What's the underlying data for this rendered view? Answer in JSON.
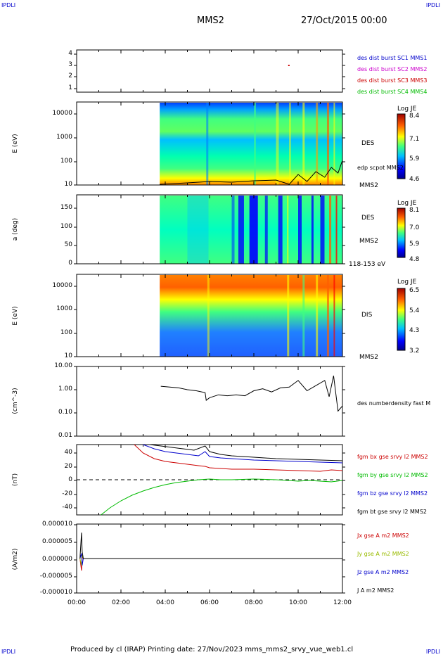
{
  "corners": {
    "tl": "IPDLI",
    "tr": "IPDLI",
    "bl": "IPDLI",
    "br": "IPDLI"
  },
  "header": {
    "spacecraft": "MMS2",
    "date": "27/Oct/2015 00:00"
  },
  "footer": {
    "text": "Produced by cl (IRAP)   Printing date: 27/Nov/2023   mms_mms2_srvy_vue_web1.cl"
  },
  "colors": {
    "mms1": "#0000cc",
    "mms2": "#cc00cc",
    "mms3": "#cc0000",
    "mms4": "#00bb00",
    "bx": "#cc0000",
    "by": "#00bb00",
    "bz": "#0000cc",
    "bt": "#000000"
  },
  "chart_data": [
    {
      "type": "scatter",
      "name_id": "burst-panel",
      "yticks": [
        "1",
        "2",
        "3",
        "4"
      ],
      "legend": [
        {
          "label": "des dist burst SC1 MMS1",
          "color": "#0000cc"
        },
        {
          "label": "des dist burst SC2 MMS2",
          "color": "#cc00cc"
        },
        {
          "label": "des dist burst SC3 MMS3",
          "color": "#cc0000"
        },
        {
          "label": "des dist burst SC4 MMS4",
          "color": "#00bb00"
        }
      ],
      "points": [
        {
          "t": 9.55,
          "sc": 3
        }
      ]
    },
    {
      "type": "heatmap",
      "name_id": "des-energy",
      "ylabel": "E (eV)",
      "yticks": [
        "10",
        "100",
        "1000",
        "10000"
      ],
      "instrument": "DES",
      "overlay_label": "edp scpot MMS2",
      "sc_label": "MMS2",
      "colorbar": {
        "title": "Log JE",
        "ticks": [
          "8.4",
          "7.1",
          "5.9",
          "4.6"
        ]
      },
      "data_start_hour": 3.75
    },
    {
      "type": "heatmap",
      "name_id": "des-pitch",
      "ylabel": "a (deg)",
      "yticks": [
        "0",
        "50",
        "100",
        "150"
      ],
      "instrument": "DES",
      "sc_label": "MMS2",
      "range_label": "118-153 eV",
      "colorbar": {
        "title": "Log JE",
        "ticks": [
          "8.1",
          "7.0",
          "5.9",
          "4.8"
        ]
      },
      "data_start_hour": 3.75
    },
    {
      "type": "heatmap",
      "name_id": "dis-energy",
      "ylabel": "E (eV)",
      "yticks": [
        "10",
        "100",
        "1000",
        "10000"
      ],
      "instrument": "DIS",
      "sc_label": "MMS2",
      "colorbar": {
        "title": "Log JE",
        "ticks": [
          "6.5",
          "5.4",
          "4.3",
          "3.2"
        ]
      },
      "data_start_hour": 3.75
    },
    {
      "type": "line",
      "name_id": "density",
      "ylabel": "(cm^-3)",
      "yticks": [
        "0.01",
        "0.10",
        "1.00",
        "10.00"
      ],
      "scale": "log",
      "ylim": [
        0.01,
        10
      ],
      "series": [
        {
          "name": "des numberdensity fast M",
          "color": "#000000",
          "x": [
            3.8,
            4.2,
            4.6,
            5.0,
            5.4,
            5.8,
            5.85,
            6.0,
            6.4,
            6.8,
            7.2,
            7.6,
            8.0,
            8.4,
            8.8,
            9.2,
            9.6,
            10.0,
            10.4,
            10.8,
            11.2,
            11.4,
            11.6,
            11.8,
            12.0
          ],
          "y": [
            1.4,
            1.3,
            1.2,
            1.0,
            0.9,
            0.75,
            0.35,
            0.45,
            0.6,
            0.55,
            0.6,
            0.55,
            0.9,
            1.1,
            0.8,
            1.2,
            1.3,
            2.5,
            0.9,
            1.5,
            2.5,
            0.5,
            4.0,
            0.12,
            0.2
          ]
        }
      ]
    },
    {
      "type": "line",
      "name_id": "fgm",
      "ylabel": "(nT)",
      "yticks": [
        "-40",
        "-20",
        "0",
        "20",
        "40"
      ],
      "ylim": [
        -50,
        50
      ],
      "series": [
        {
          "name": "fgm bx gse srvy l2 MMS2",
          "color": "#cc0000",
          "x": [
            2.6,
            3.0,
            3.5,
            4.0,
            4.5,
            5.0,
            5.5,
            5.8,
            6.0,
            6.5,
            7.0,
            8.0,
            9.0,
            10.0,
            11.0,
            11.5,
            12.0
          ],
          "y": [
            50,
            38,
            30,
            26,
            24,
            22,
            20,
            19,
            17,
            16,
            15,
            15,
            14,
            13,
            12,
            14,
            13
          ]
        },
        {
          "name": "fgm by gse srvy l2 MMS2",
          "color": "#00bb00",
          "x": [
            1.1,
            1.5,
            2.0,
            2.5,
            3.0,
            3.5,
            4.0,
            4.5,
            5.0,
            5.5,
            6.0,
            6.5,
            7.0,
            8.0,
            9.0,
            9.5,
            10.0,
            10.5,
            11.0,
            11.5,
            12.0
          ],
          "y": [
            -50,
            -40,
            -30,
            -22,
            -16,
            -11,
            -7,
            -4,
            -2,
            0,
            1,
            0,
            0,
            1,
            0,
            -1,
            -2,
            -1,
            -2,
            -3,
            -1
          ]
        },
        {
          "name": "fgm bz gse srvy l2 MMS2",
          "color": "#0000cc",
          "x": [
            3.0,
            3.5,
            4.0,
            4.5,
            5.0,
            5.5,
            5.8,
            6.0,
            6.5,
            7.0,
            8.0,
            9.0,
            10.0,
            11.0,
            12.0
          ],
          "y": [
            50,
            44,
            40,
            38,
            36,
            34,
            40,
            33,
            31,
            30,
            28,
            27,
            26,
            25,
            24
          ]
        },
        {
          "name": "fgm bt gse srvy l2 MMS2",
          "color": "#000000",
          "x": [
            3.3,
            3.8,
            4.3,
            4.8,
            5.3,
            5.8,
            6.0,
            6.5,
            7.0,
            8.0,
            9.0,
            10.0,
            11.0,
            12.0
          ],
          "y": [
            50,
            48,
            46,
            44,
            42,
            48,
            40,
            36,
            34,
            32,
            30,
            29,
            28,
            27
          ]
        }
      ]
    },
    {
      "type": "line",
      "name_id": "current",
      "ylabel": "(A/m2)",
      "yticks": [
        "-0.000010",
        "-0.000005",
        "0.000000",
        "0.000005",
        "0.000010"
      ],
      "ylim": [
        -1e-05,
        1e-05
      ],
      "series": [
        {
          "name": "Jx gse A m2 MMS2",
          "color": "#cc0000",
          "x": [
            0.15,
            0.22,
            0.25,
            0.3,
            12.0
          ],
          "y": [
            0,
            -3.5e-06,
            5e-07,
            0,
            0
          ]
        },
        {
          "name": "Jy gse A m2 MMS2",
          "color": "#99bb00",
          "x": [
            0.15,
            0.22,
            0.25,
            0.3,
            12.0
          ],
          "y": [
            0,
            -2e-06,
            1e-06,
            0,
            0
          ]
        },
        {
          "name": "Jz gse A m2 MMS2",
          "color": "#0000cc",
          "x": [
            0.15,
            0.22,
            0.25,
            0.3,
            12.0
          ],
          "y": [
            0,
            1.5e-06,
            -2e-06,
            0,
            0
          ]
        },
        {
          "name": "J A m2 MMS2",
          "color": "#000000",
          "x": [
            0.15,
            0.22,
            0.25,
            0.3,
            12.0
          ],
          "y": [
            0,
            7.5e-06,
            2e-06,
            0,
            0
          ]
        }
      ]
    }
  ],
  "xaxis": {
    "ticks": [
      "00:00",
      "02:00",
      "04:00",
      "06:00",
      "08:00",
      "10:00",
      "12:00"
    ],
    "xlim": [
      0,
      12
    ]
  }
}
